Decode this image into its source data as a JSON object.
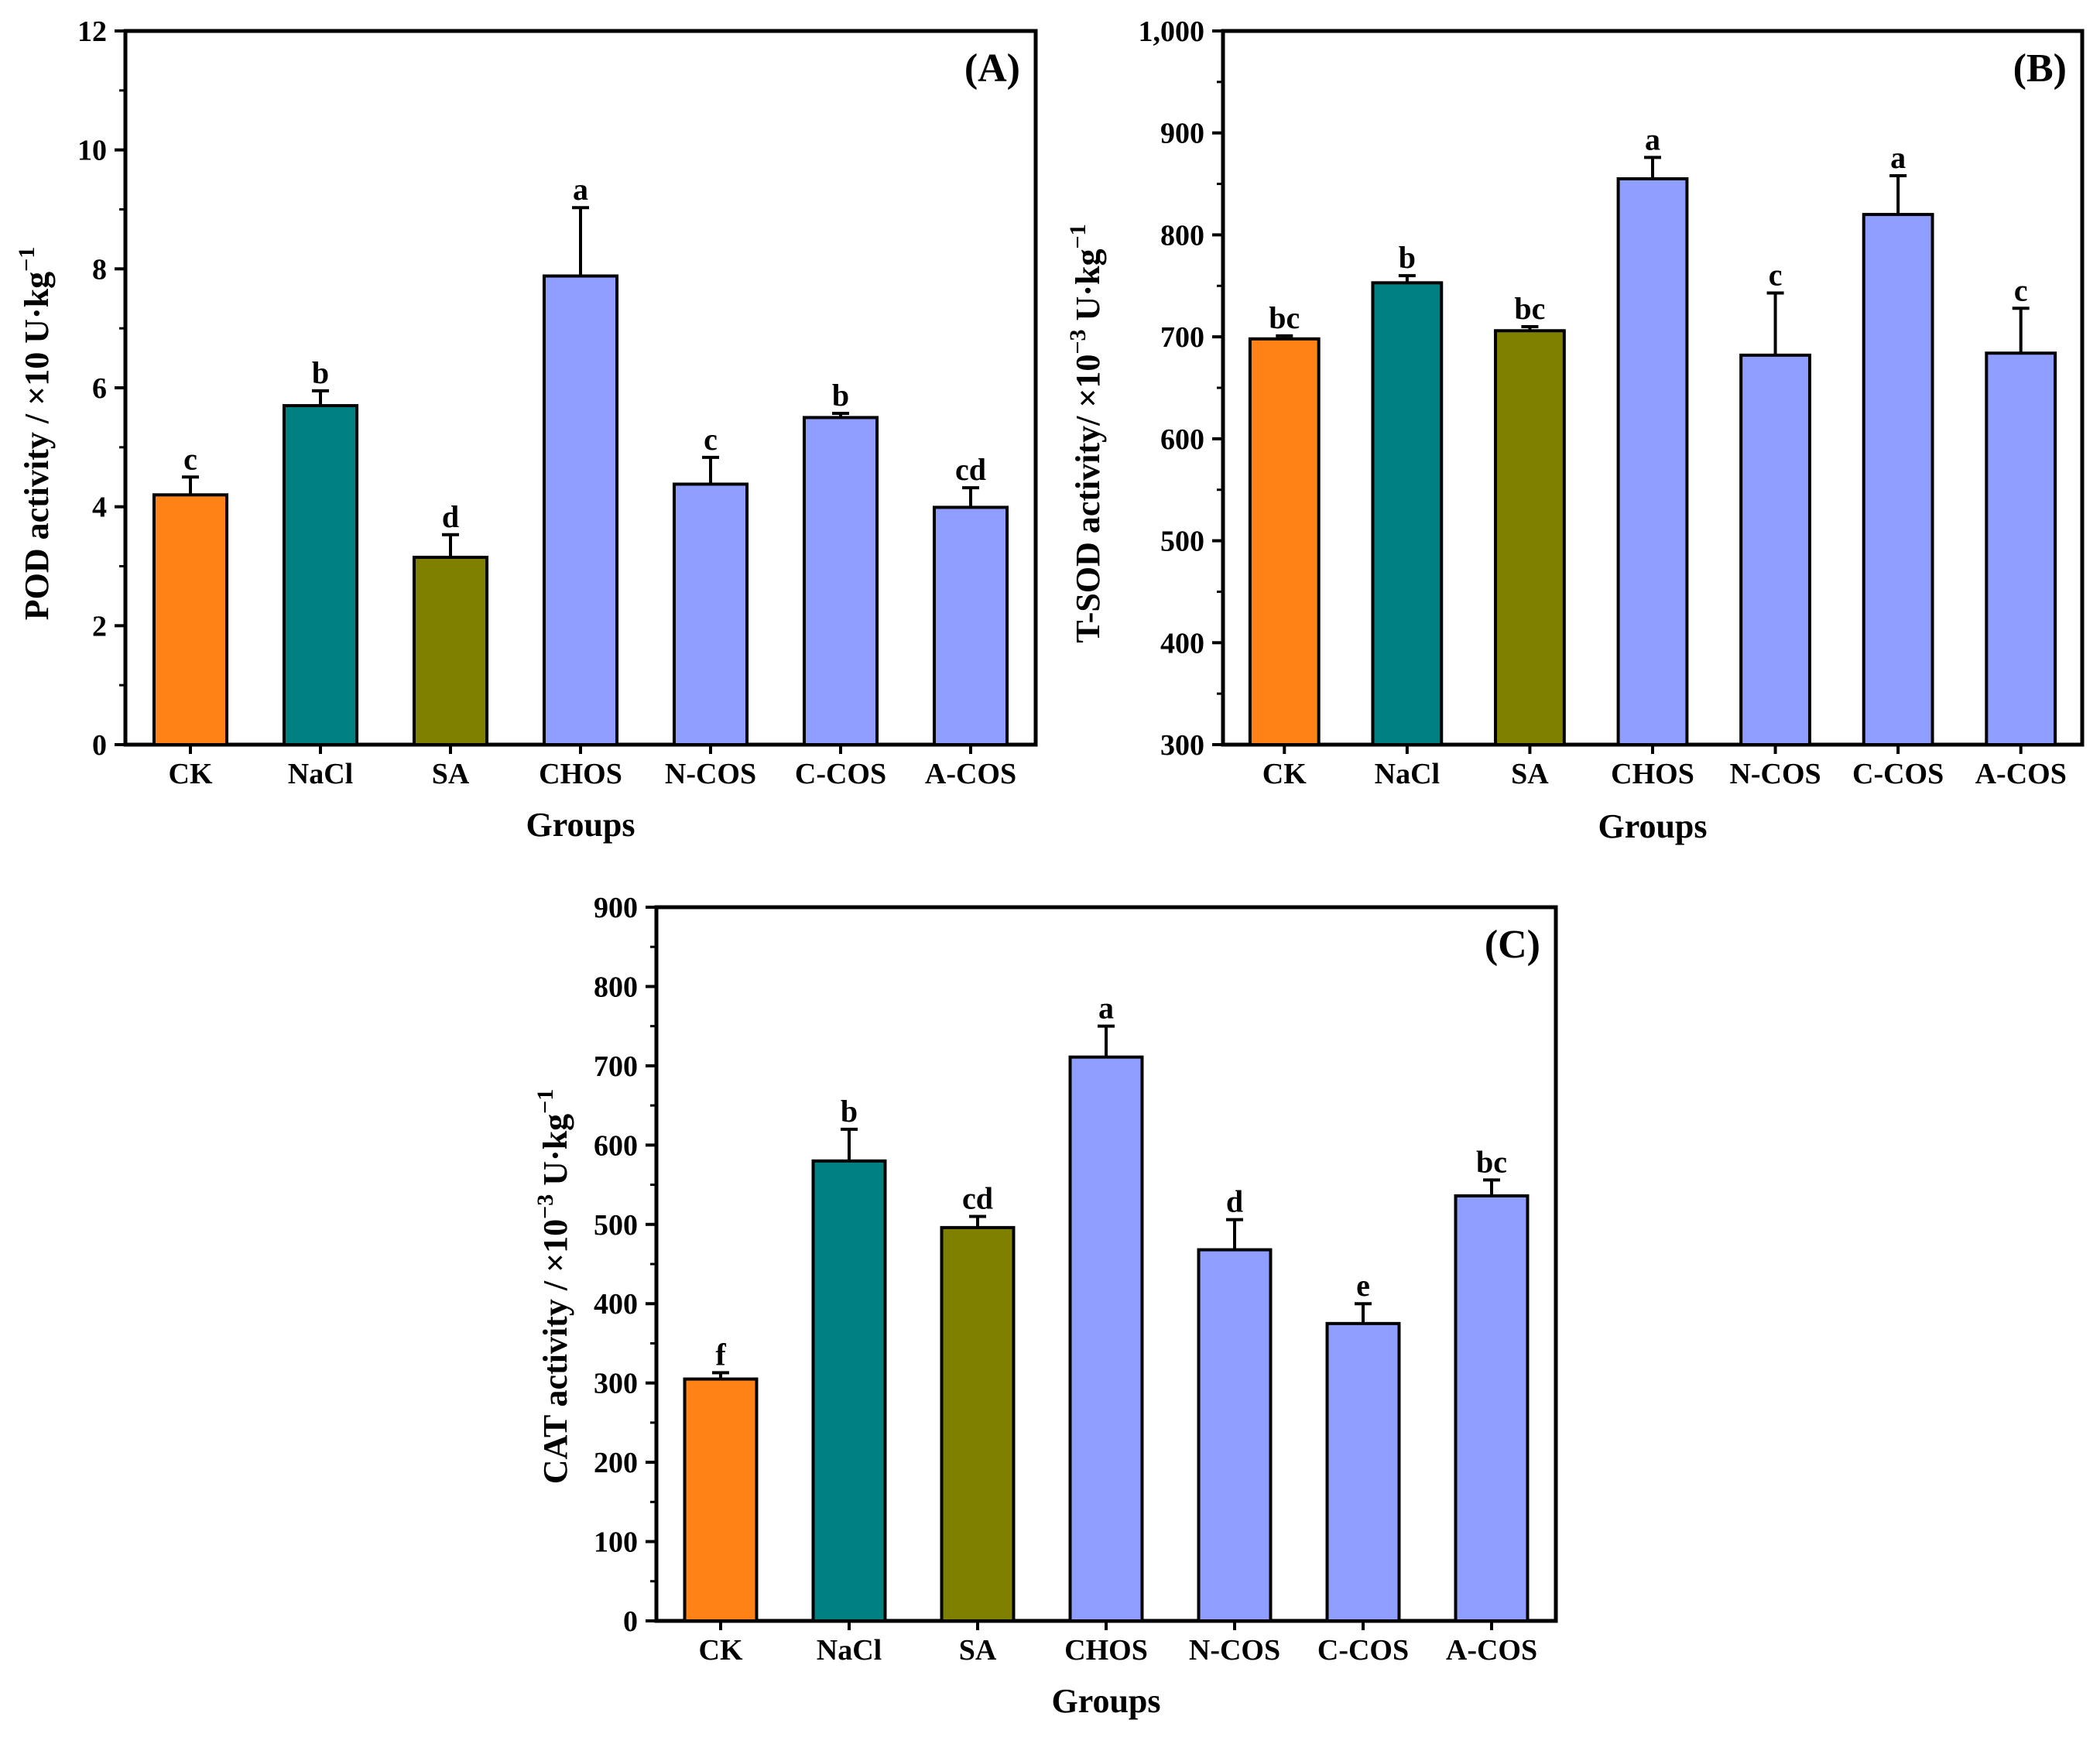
{
  "colors": {
    "CK": "#FF8217",
    "NaCl": "#008080",
    "SA": "#808000",
    "COS": "#8F9EFF"
  },
  "chart_data": [
    {
      "type": "bar",
      "title": "(A)",
      "xlabel": "Groups",
      "ylabel": "POD activity / ×10 U·kg",
      "ylabel_sup": "−1",
      "categories": [
        "CK",
        "NaCl",
        "SA",
        "CHOS",
        "N-COS",
        "C-COS",
        "A-COS"
      ],
      "values": [
        4.2,
        5.7,
        3.15,
        7.88,
        4.38,
        5.5,
        3.99
      ],
      "errors": [
        0.3,
        0.25,
        0.38,
        1.15,
        0.45,
        0.07,
        0.33
      ],
      "significance": [
        "c",
        "b",
        "d",
        "a",
        "c",
        "b",
        "cd"
      ],
      "ylim": [
        0,
        12
      ],
      "yticks": [
        0,
        2,
        4,
        6,
        8,
        10,
        12
      ],
      "ytick_labels": [
        "0",
        "2",
        "4",
        "6",
        "8",
        "10",
        "12"
      ]
    },
    {
      "type": "bar",
      "title": "(B)",
      "xlabel": "Groups",
      "ylabel": "T-SOD activity/ ×10",
      "ylabel_sup": "−3",
      "ylabel_tail": " U·kg",
      "ylabel_sup2": "−1",
      "categories": [
        "CK",
        "NaCl",
        "SA",
        "CHOS",
        "N-COS",
        "C-COS",
        "A-COS"
      ],
      "values": [
        698,
        753,
        706,
        855,
        682,
        820,
        684
      ],
      "errors": [
        3,
        7,
        4,
        21,
        61,
        38,
        44
      ],
      "significance": [
        "bc",
        "b",
        "bc",
        "a",
        "c",
        "a",
        "c"
      ],
      "ylim": [
        300,
        1000
      ],
      "yticks": [
        300,
        400,
        500,
        600,
        700,
        800,
        900,
        1000
      ],
      "ytick_labels": [
        "300",
        "400",
        "500",
        "600",
        "700",
        "800",
        "900",
        "1,000"
      ]
    },
    {
      "type": "bar",
      "title": "(C)",
      "xlabel": "Groups",
      "ylabel": "CAT activity / ×10",
      "ylabel_sup": "−3",
      "ylabel_tail": " U·kg",
      "ylabel_sup2": "−1",
      "categories": [
        "CK",
        "NaCl",
        "SA",
        "CHOS",
        "N-COS",
        "C-COS",
        "A-COS"
      ],
      "values": [
        305,
        580,
        496,
        711,
        468,
        375,
        536
      ],
      "errors": [
        8,
        40,
        14,
        39,
        38,
        25,
        20
      ],
      "significance": [
        "f",
        "b",
        "cd",
        "a",
        "d",
        "e",
        "bc"
      ],
      "ylim": [
        0,
        900
      ],
      "yticks": [
        0,
        100,
        200,
        300,
        400,
        500,
        600,
        700,
        800,
        900
      ],
      "ytick_labels": [
        "0",
        "100",
        "200",
        "300",
        "400",
        "500",
        "600",
        "700",
        "800",
        "900"
      ]
    }
  ]
}
